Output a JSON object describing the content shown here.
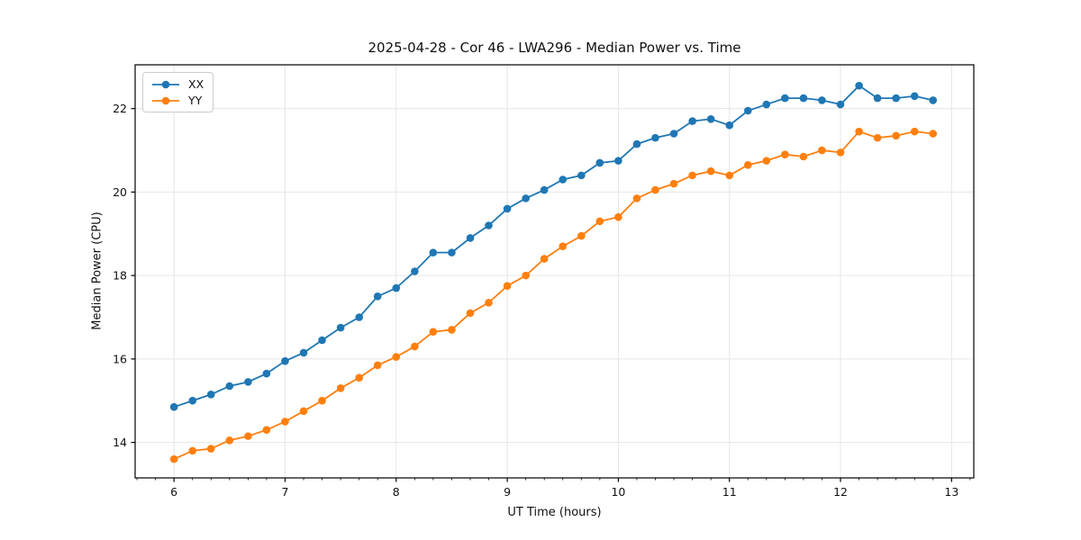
{
  "chart_data": {
    "type": "line",
    "title": "2025-04-28 - Cor 46 - LWA296 - Median Power vs. Time",
    "xlabel": "UT Time (hours)",
    "ylabel": "Median Power (CPU)",
    "xlim": [
      5.65,
      13.2
    ],
    "ylim": [
      13.15,
      23.05
    ],
    "xticks": [
      6,
      7,
      8,
      9,
      10,
      11,
      12,
      13
    ],
    "yticks": [
      14,
      16,
      18,
      20,
      22
    ],
    "x_minor_tick_step_hours": 0.1667,
    "grid": true,
    "legend_position": "upper left",
    "x": [
      6.0,
      6.167,
      6.333,
      6.5,
      6.667,
      6.833,
      7.0,
      7.167,
      7.333,
      7.5,
      7.667,
      7.833,
      8.0,
      8.167,
      8.333,
      8.5,
      8.667,
      8.833,
      9.0,
      9.167,
      9.333,
      9.5,
      9.667,
      9.833,
      10.0,
      10.167,
      10.333,
      10.5,
      10.667,
      10.833,
      11.0,
      11.167,
      11.333,
      11.5,
      11.667,
      11.833,
      12.0,
      12.167,
      12.333,
      12.5,
      12.667,
      12.833
    ],
    "series": [
      {
        "name": "XX",
        "color": "#1f77b4",
        "values": [
          14.85,
          15.0,
          15.15,
          15.35,
          15.45,
          15.65,
          15.95,
          16.15,
          16.45,
          16.75,
          17.0,
          17.5,
          17.7,
          18.1,
          18.55,
          18.55,
          18.9,
          19.2,
          19.6,
          19.85,
          20.05,
          20.3,
          20.4,
          20.7,
          20.75,
          21.15,
          21.3,
          21.4,
          21.7,
          21.75,
          21.6,
          21.95,
          22.1,
          22.25,
          22.25,
          22.2,
          22.1,
          22.55,
          22.25,
          22.25,
          22.3,
          22.2
        ]
      },
      {
        "name": "YY",
        "color": "#ff7f0e",
        "values": [
          13.6,
          13.8,
          13.85,
          14.05,
          14.15,
          14.3,
          14.5,
          14.75,
          15.0,
          15.3,
          15.55,
          15.85,
          16.05,
          16.3,
          16.65,
          16.7,
          17.1,
          17.35,
          17.75,
          18.0,
          18.4,
          18.7,
          18.95,
          19.3,
          19.4,
          19.85,
          20.05,
          20.2,
          20.4,
          20.5,
          20.4,
          20.65,
          20.75,
          20.9,
          20.85,
          21.0,
          20.95,
          21.45,
          21.3,
          21.35,
          21.45,
          21.4
        ]
      }
    ],
    "style": {
      "grid_color": "#e6e6e6",
      "spine_color": "#000000",
      "background": "#ffffff",
      "marker": "circle"
    }
  }
}
